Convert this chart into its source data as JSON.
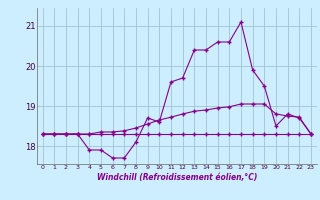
{
  "title": "",
  "xlabel": "Windchill (Refroidissement éolien,°C)",
  "background_color": "#cceeff",
  "line_color": "#880088",
  "grid_color": "#99bbcc",
  "x": [
    0,
    1,
    2,
    3,
    4,
    5,
    6,
    7,
    8,
    9,
    10,
    11,
    12,
    13,
    14,
    15,
    16,
    17,
    18,
    19,
    20,
    21,
    22,
    23
  ],
  "line1": [
    18.3,
    18.3,
    18.3,
    18.3,
    18.3,
    18.3,
    18.3,
    18.3,
    18.3,
    18.3,
    18.3,
    18.3,
    18.3,
    18.3,
    18.3,
    18.3,
    18.3,
    18.3,
    18.3,
    18.3,
    18.3,
    18.3,
    18.3,
    18.3
  ],
  "line2": [
    18.3,
    18.3,
    18.3,
    18.3,
    17.9,
    17.9,
    17.7,
    17.7,
    18.1,
    18.7,
    18.6,
    19.6,
    19.7,
    20.4,
    20.4,
    20.6,
    20.6,
    21.1,
    19.9,
    19.5,
    18.5,
    18.8,
    18.7,
    18.3
  ],
  "line3": [
    18.3,
    18.3,
    18.3,
    18.3,
    18.3,
    18.35,
    18.35,
    18.38,
    18.45,
    18.55,
    18.65,
    18.72,
    18.8,
    18.87,
    18.9,
    18.95,
    18.98,
    19.05,
    19.05,
    19.05,
    18.8,
    18.75,
    18.72,
    18.3
  ],
  "ylim": [
    17.55,
    21.45
  ],
  "yticks": [
    18,
    19,
    20,
    21
  ],
  "xticks": [
    0,
    1,
    2,
    3,
    4,
    5,
    6,
    7,
    8,
    9,
    10,
    11,
    12,
    13,
    14,
    15,
    16,
    17,
    18,
    19,
    20,
    21,
    22,
    23
  ]
}
